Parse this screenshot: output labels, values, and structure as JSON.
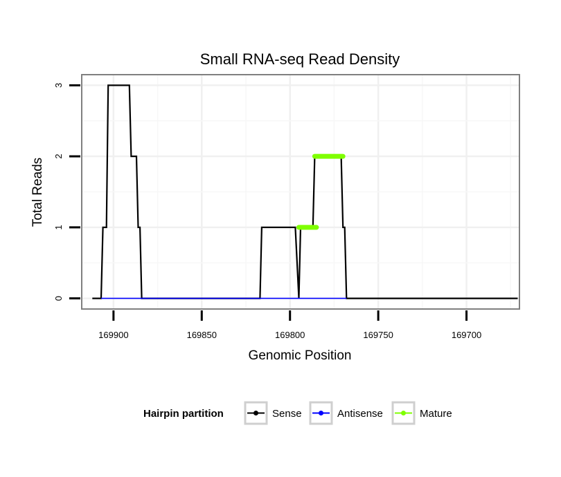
{
  "chart_data": {
    "type": "line",
    "title": "Small RNA-seq Read Density",
    "xlabel": "Genomic Position",
    "ylabel": "Total Reads",
    "x_reversed": true,
    "xlim": [
      169918,
      169670
    ],
    "ylim": [
      -0.15,
      3.15
    ],
    "x_ticks": [
      169900,
      169850,
      169800,
      169750,
      169700
    ],
    "x_tick_labels": [
      "169900",
      "169850",
      "169800",
      "169750",
      "169700"
    ],
    "y_ticks": [
      0,
      1,
      2,
      3
    ],
    "y_tick_labels": [
      "0",
      "1",
      "2",
      "3"
    ],
    "grid": true,
    "legend": {
      "title": "Hairpin partition",
      "placement": "bottom",
      "entries": [
        {
          "name": "Sense",
          "color": "#000000"
        },
        {
          "name": "Antisense",
          "color": "#0000ff"
        },
        {
          "name": "Mature",
          "color": "#7fff00"
        }
      ]
    },
    "series": [
      {
        "name": "Sense",
        "color": "#000000",
        "points": [
          [
            169912,
            0
          ],
          [
            169907,
            0
          ],
          [
            169906,
            1
          ],
          [
            169904,
            1
          ],
          [
            169903,
            3
          ],
          [
            169891,
            3
          ],
          [
            169890,
            2
          ],
          [
            169887,
            2
          ],
          [
            169886,
            1
          ],
          [
            169885,
            1
          ],
          [
            169884,
            0
          ],
          [
            169817,
            0
          ],
          [
            169816,
            1
          ],
          [
            169797,
            1
          ],
          [
            169795,
            0
          ],
          [
            169794,
            1
          ],
          [
            169787,
            1
          ],
          [
            169786,
            2
          ],
          [
            169771,
            2
          ],
          [
            169770,
            1
          ],
          [
            169769,
            1
          ],
          [
            169768,
            0
          ],
          [
            169671,
            0
          ]
        ]
      },
      {
        "name": "Antisense",
        "color": "#0000ff",
        "points": [
          [
            169907,
            0
          ],
          [
            169884,
            0
          ],
          [
            169817,
            0
          ],
          [
            169795,
            0
          ],
          [
            169768,
            0
          ]
        ]
      },
      {
        "name": "Mature",
        "color": "#7fff00",
        "segments": [
          {
            "x": [
              169795,
              169785
            ],
            "y": 1
          },
          {
            "x": [
              169786,
              169770
            ],
            "y": 2
          }
        ]
      }
    ]
  }
}
